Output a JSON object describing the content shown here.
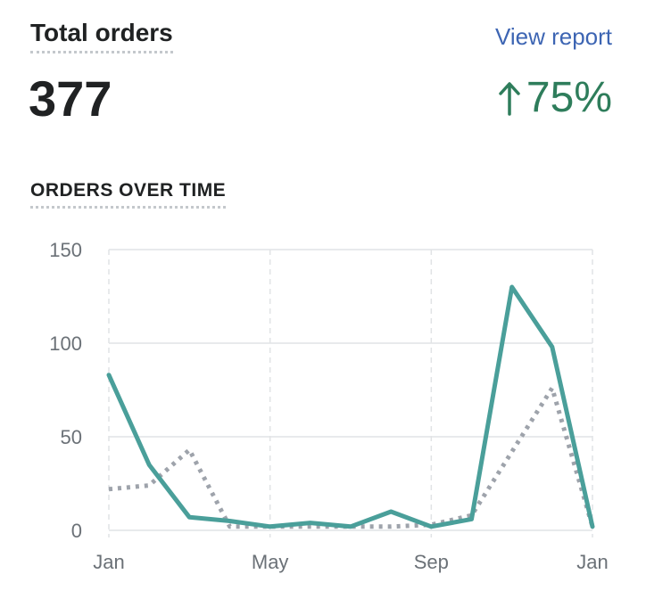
{
  "card": {
    "title": "Total orders",
    "view_report_label": "View report",
    "total_value": "377",
    "change_value": "75%",
    "change_icon": "arrow-up-icon",
    "section_title": "ORDERS OVER TIME"
  },
  "colors": {
    "current_series": "#4a9f9a",
    "previous_series": "#9ea3ab",
    "link": "#3d65b3",
    "positive": "#2e7d5b",
    "grid": "#e1e3e5"
  },
  "chart_data": {
    "type": "line",
    "title": "",
    "xlabel": "",
    "ylabel": "",
    "ylim": [
      0,
      150
    ],
    "yticks": [
      0,
      50,
      100,
      150
    ],
    "xticks": [
      {
        "label": "Jan",
        "index": 0
      },
      {
        "label": "May",
        "index": 4
      },
      {
        "label": "Sep",
        "index": 8
      },
      {
        "label": "Jan",
        "index": 12
      }
    ],
    "grid": true,
    "legend": "none",
    "x": [
      0,
      1,
      2,
      3,
      4,
      5,
      6,
      7,
      8,
      9,
      10,
      11,
      12
    ],
    "series": [
      {
        "values": [
          83,
          35,
          7,
          5,
          2,
          4,
          2,
          10,
          2,
          6,
          130,
          98,
          2
        ],
        "style": "solid"
      },
      {
        "values": [
          22,
          24,
          43,
          2,
          2,
          2,
          2,
          2,
          3,
          8,
          42,
          76,
          2
        ],
        "style": "dotted"
      }
    ]
  }
}
